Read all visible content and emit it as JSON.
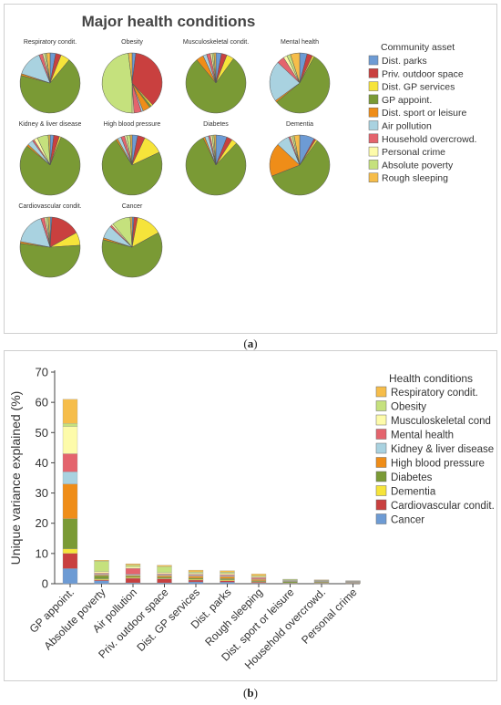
{
  "panel_a": {
    "label": "a",
    "title": "Major health conditions",
    "legend_title": "Community asset"
  },
  "panel_b": {
    "label": "b",
    "legend_title": "Health conditions"
  },
  "chart_data": [
    {
      "type": "pie",
      "title": "Major health conditions",
      "legend_title": "Community asset",
      "legend_position": "right",
      "categories": [
        "Dist. parks",
        "Priv. outdoor space",
        "Dist. GP services",
        "GP appoint.",
        "Dist. sport or leisure",
        "Air pollution",
        "Household overcrowd.",
        "Personal crime",
        "Absolute poverty",
        "Rough sleeping"
      ],
      "colors": [
        "#6d9bd4",
        "#c9403f",
        "#f6e43a",
        "#7a9a35",
        "#ef8d18",
        "#a9d2e0",
        "#e4646d",
        "#fdfbaa",
        "#c5e17d",
        "#f6bd4a"
      ],
      "pies": [
        {
          "title": "Respiratory condit.",
          "values": [
            3,
            3,
            5,
            68,
            1,
            14,
            2,
            1,
            1,
            2
          ]
        },
        {
          "title": "Obesity",
          "values": [
            2,
            36,
            1,
            1,
            4,
            1,
            4,
            1,
            48,
            2
          ]
        },
        {
          "title": "Musculoskeletal condit.",
          "values": [
            3,
            3,
            4,
            79,
            4,
            2,
            2,
            1,
            1,
            1
          ]
        },
        {
          "title": "Mental  health",
          "values": [
            4,
            3,
            1,
            56,
            1,
            22,
            4,
            2,
            2,
            5
          ]
        },
        {
          "title": "Kidney & liver disease",
          "values": [
            2,
            3,
            1,
            80,
            1,
            3,
            1,
            2,
            6,
            1
          ]
        },
        {
          "title": "High blood pressure",
          "values": [
            3,
            4,
            11,
            73,
            1,
            2,
            2,
            1,
            2,
            1
          ]
        },
        {
          "title": "Diabetes",
          "values": [
            6,
            3,
            3,
            81,
            1,
            2,
            1,
            1,
            1,
            1
          ]
        },
        {
          "title": "Dementia",
          "values": [
            8,
            1,
            1,
            59,
            18,
            7,
            1,
            1,
            1,
            3
          ]
        },
        {
          "title": "Cardiovascular condit.",
          "values": [
            1,
            16,
            7,
            53,
            1,
            17,
            2,
            1,
            1,
            1
          ]
        },
        {
          "title": "Cancer",
          "values": [
            1,
            2,
            14,
            62,
            1,
            7,
            1,
            1,
            10,
            1
          ]
        }
      ]
    },
    {
      "type": "bar",
      "stacked": true,
      "title": "",
      "xlabel": "",
      "ylabel": "Unique variance explained (%)",
      "ylim": [
        0,
        70
      ],
      "yticks": [
        0,
        10,
        20,
        30,
        40,
        50,
        60,
        70
      ],
      "grid": false,
      "legend_title": "Health conditions",
      "legend_position": "right",
      "categories": [
        "GP appoint.",
        "Absolute poverty",
        "Air pollution",
        "Priv. outdoor space",
        "Dist. GP services",
        "Dist. parks",
        "Rough sleeping",
        "Dist. sport or leisure",
        "Household overcrowd.",
        "Personal crime"
      ],
      "series": [
        {
          "name": "Cancer",
          "color": "#6d9bd4",
          "values": [
            5.0,
            1.0,
            0.3,
            0.3,
            0.6,
            0.5,
            0.2,
            0.1,
            0.1,
            0.1
          ]
        },
        {
          "name": "Cardiovascular condit.",
          "color": "#c9403f",
          "values": [
            5.0,
            0.3,
            1.5,
            1.3,
            0.6,
            0.5,
            0.3,
            0.1,
            0.1,
            0.1
          ]
        },
        {
          "name": "Dementia",
          "color": "#f6e43a",
          "values": [
            1.5,
            0.3,
            0.3,
            0.2,
            0.3,
            0.3,
            0.2,
            0.1,
            0.1,
            0.1
          ]
        },
        {
          "name": "Diabetes",
          "color": "#7a9a35",
          "values": [
            10.0,
            1.0,
            0.4,
            0.4,
            0.4,
            0.4,
            0.3,
            0.4,
            0.2,
            0.1
          ]
        },
        {
          "name": "High blood pressure",
          "color": "#ef8d18",
          "values": [
            11.5,
            0.3,
            0.3,
            0.5,
            0.6,
            0.6,
            0.4,
            0.1,
            0.2,
            0.1
          ]
        },
        {
          "name": "Kidney & liver disease",
          "color": "#a9d2e0",
          "values": [
            4.0,
            0.3,
            0.3,
            0.3,
            0.3,
            0.3,
            0.2,
            0.1,
            0.1,
            0.1
          ]
        },
        {
          "name": "Mental  health",
          "color": "#e4646d",
          "values": [
            6.0,
            0.3,
            2.0,
            0.3,
            0.3,
            0.4,
            0.4,
            0.1,
            0.1,
            0.1
          ]
        },
        {
          "name": "Musculoskeletal cond",
          "color": "#fdfbaa",
          "values": [
            9.0,
            0.5,
            0.5,
            0.4,
            0.4,
            0.4,
            0.3,
            0.1,
            0.1,
            0.1
          ]
        },
        {
          "name": "Obesity",
          "color": "#c5e17d",
          "values": [
            1.0,
            3.5,
            0.5,
            2.0,
            0.4,
            0.4,
            0.3,
            0.3,
            0.1,
            0.1
          ]
        },
        {
          "name": "Respiratory condit.",
          "color": "#f6bd4a",
          "values": [
            8.0,
            0.3,
            0.5,
            0.4,
            0.6,
            0.5,
            0.6,
            0.1,
            0.2,
            0.1
          ]
        }
      ]
    }
  ]
}
